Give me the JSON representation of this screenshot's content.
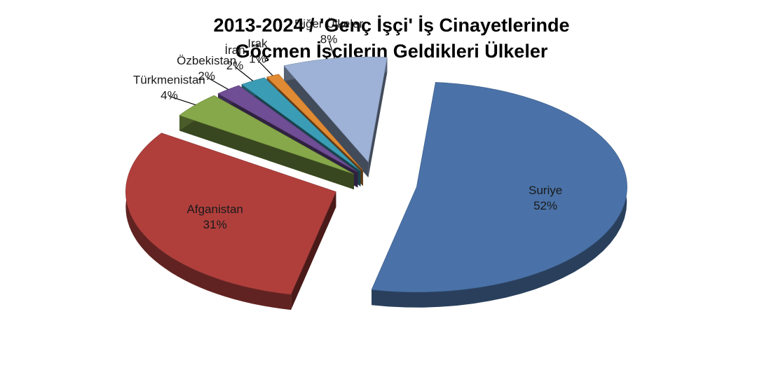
{
  "chart_data": {
    "type": "pie",
    "title_lines": [
      "2013-2024 / 'Genç İşçi' İş Cinayetlerinde",
      "Göçmen İşçilerin Geldikleri Ülkeler"
    ],
    "style": "3d-exploded",
    "slices": [
      {
        "label": "Suriye",
        "value": 52,
        "value_label": "52%",
        "color": "#4a72a8"
      },
      {
        "label": "Afganistan",
        "value": 31,
        "value_label": "31%",
        "color": "#b03f3c"
      },
      {
        "label": "Türkmenistan",
        "value": 4,
        "value_label": "4%",
        "color": "#86a84a"
      },
      {
        "label": "Özbekistan",
        "value": 2,
        "value_label": "2%",
        "color": "#6f4e96"
      },
      {
        "label": "İran",
        "value": 2,
        "value_label": "2%",
        "color": "#3b9db5"
      },
      {
        "label": "Irak",
        "value": 1,
        "value_label": "1%",
        "color": "#e08a33"
      },
      {
        "label": "Diğer Ülkeler",
        "value": 8,
        "value_label": "8%",
        "color": "#9db2d6"
      }
    ]
  }
}
